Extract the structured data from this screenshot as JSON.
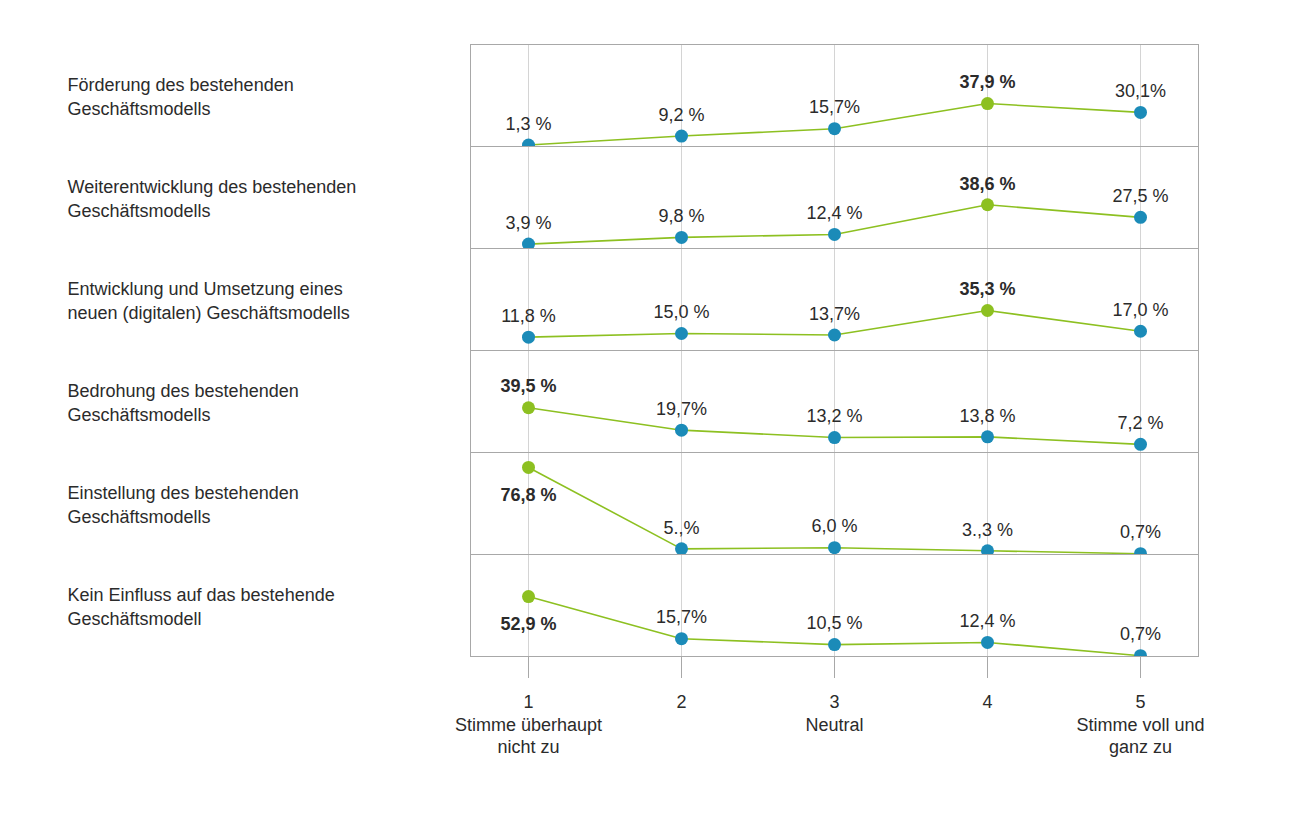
{
  "chart_data": {
    "type": "line",
    "categories": [
      "1",
      "2",
      "3",
      "4",
      "5"
    ],
    "category_descriptions": [
      "Stimme überhaupt nicht zu",
      null,
      "Neutral",
      null,
      "Stimme voll und ganz zu"
    ],
    "ylim": [
      0,
      90
    ],
    "yticks": [],
    "tick_labels": "x",
    "grid": true,
    "data_labels": true,
    "marker": "circle",
    "line_style": "solid",
    "series": [
      {
        "name": "Förderung des bestehenden Geschäftsmodells",
        "color": "#8dc021",
        "colors": [
          "#1b8bb8",
          "#1b8bb8",
          "#1b8bb8",
          "#8dc021",
          "#1b8bb8"
        ],
        "values": [
          1.3,
          9.2,
          15.7,
          37.9,
          30.1
        ],
        "value_labels": [
          "1,3 %",
          "9,2 %",
          "15,7%",
          "37,9 %",
          "30,1%"
        ]
      },
      {
        "name": "Weiterentwicklung des bestehenden Geschäftsmodells",
        "color": "#8dc021",
        "colors": [
          "#1b8bb8",
          "#1b8bb8",
          "#1b8bb8",
          "#8dc021",
          "#1b8bb8"
        ],
        "values": [
          3.9,
          9.8,
          12.4,
          38.6,
          27.5
        ],
        "value_labels": [
          "3,9 %",
          "9,8 %",
          "12,4 %",
          "38,6 %",
          "27,5 %"
        ]
      },
      {
        "name": "Entwicklung und Umsetzung eines neuen (digitalen) Geschäftsmodells",
        "color": "#8dc021",
        "colors": [
          "#1b8bb8",
          "#1b8bb8",
          "#1b8bb8",
          "#8dc021",
          "#1b8bb8"
        ],
        "values": [
          11.8,
          15.0,
          13.7,
          35.3,
          17.0
        ],
        "value_labels": [
          "11,8 %",
          "15,0 %",
          "13,7%",
          "35,3 %",
          "17,0 %"
        ]
      },
      {
        "name": "Bedrohung des bestehenden Geschäftsmodells",
        "color": "#8dc021",
        "colors": [
          "#8dc021",
          "#1b8bb8",
          "#1b8bb8",
          "#1b8bb8",
          "#1b8bb8"
        ],
        "values": [
          39.5,
          19.7,
          13.2,
          13.8,
          7.2
        ],
        "value_labels": [
          "39,5 %",
          "19,7%",
          "13,2 %",
          "13,8 %",
          "7,2 %"
        ]
      },
      {
        "name": "Einstellung des bestehenden Geschäftsmodells",
        "color": "#8dc021",
        "colors": [
          "#8dc021",
          "#1b8bb8",
          "#1b8bb8",
          "#1b8bb8",
          "#1b8bb8"
        ],
        "values": [
          76.8,
          5,
          6.0,
          3.3,
          0.7
        ],
        "value_labels": [
          "76,8 %",
          "5.,%",
          "6,0 %",
          "3.,3 %",
          "0,7%"
        ]
      },
      {
        "name": "Kein Einfluss auf das bestehende Geschäftsmodell",
        "color": "#8dc021",
        "colors": [
          "#8dc021",
          "#1b8bb8",
          "#1b8bb8",
          "#1b8bb8",
          "#1b8bb8"
        ],
        "values": [
          52.9,
          15.7,
          10.5,
          12.4,
          0.7
        ],
        "value_labels": [
          "52,9 %",
          "15,7%",
          "10,5 %",
          "12,4 %",
          "0,7%"
        ]
      }
    ]
  }
}
